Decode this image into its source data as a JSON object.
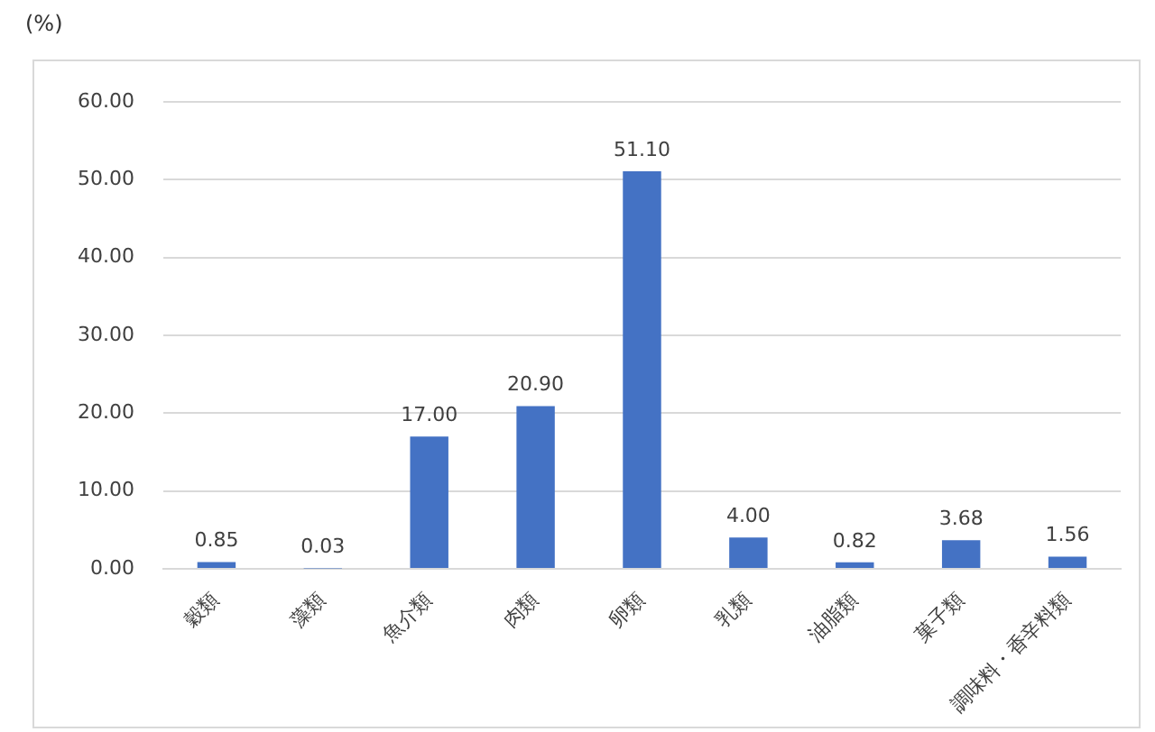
{
  "chart_data": {
    "type": "bar",
    "ylabel": "(%)",
    "categories": [
      "穀類",
      "藻類",
      "魚介類",
      "肉類",
      "卵類",
      "乳類",
      "油脂類",
      "菓子類",
      "調味料・香辛料類"
    ],
    "values": [
      0.85,
      0.03,
      17.0,
      20.9,
      51.1,
      4.0,
      0.82,
      3.68,
      1.56
    ],
    "value_labels": [
      "0.85",
      "0.03",
      "17.00",
      "20.90",
      "51.10",
      "4.00",
      "0.82",
      "3.68",
      "1.56"
    ],
    "color": "#4472c4",
    "ylim": [
      0,
      60
    ],
    "yticks": [
      {
        "value": 0,
        "label": "0.00"
      },
      {
        "value": 10,
        "label": "10.00"
      },
      {
        "value": 20,
        "label": "20.00"
      },
      {
        "value": 30,
        "label": "30.00"
      },
      {
        "value": 40,
        "label": "40.00"
      },
      {
        "value": 50,
        "label": "50.00"
      },
      {
        "value": 60,
        "label": "60.00"
      }
    ],
    "grid": "y",
    "legend": false
  }
}
